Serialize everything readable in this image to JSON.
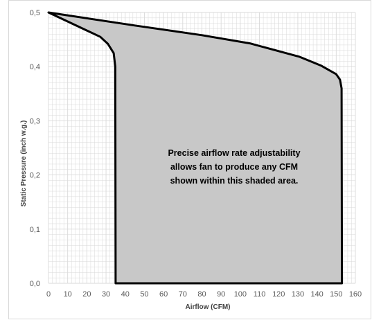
{
  "chart_data": {
    "type": "area",
    "xlabel": "Airflow (CFM)",
    "ylabel": "Static Pressure (inch w.g.)",
    "xlim": [
      0,
      160
    ],
    "ylim": [
      0,
      0.5
    ],
    "x_ticks": [
      "0",
      "10",
      "20",
      "30",
      "40",
      "50",
      "60",
      "70",
      "80",
      "90",
      "100",
      "110",
      "120",
      "130",
      "140",
      "150",
      "160"
    ],
    "y_ticks": [
      "0,0",
      "0,1",
      "0,2",
      "0,3",
      "0,4",
      "0,5"
    ],
    "grid": true,
    "annotation": [
      "Precise airflow rate adjustability",
      "allows fan to produce any CFM",
      "shown within this shaded area."
    ],
    "fill_color": "#c8c8c8",
    "outline_color": "#000000",
    "grid_color": "#d9d9d9",
    "region_outline": [
      {
        "x": 0,
        "y": 0.5
      },
      {
        "x": 45,
        "y": 0.476
      },
      {
        "x": 80,
        "y": 0.458
      },
      {
        "x": 105,
        "y": 0.443
      },
      {
        "x": 131,
        "y": 0.418
      },
      {
        "x": 142,
        "y": 0.402
      },
      {
        "x": 150,
        "y": 0.386
      },
      {
        "x": 152,
        "y": 0.376
      },
      {
        "x": 152.8,
        "y": 0.36
      },
      {
        "x": 153,
        "y": 0
      },
      {
        "x": 35,
        "y": 0
      },
      {
        "x": 34.8,
        "y": 0.4
      },
      {
        "x": 34,
        "y": 0.425
      },
      {
        "x": 31,
        "y": 0.442
      },
      {
        "x": 27,
        "y": 0.455
      },
      {
        "x": 0,
        "y": 0.5
      }
    ]
  }
}
